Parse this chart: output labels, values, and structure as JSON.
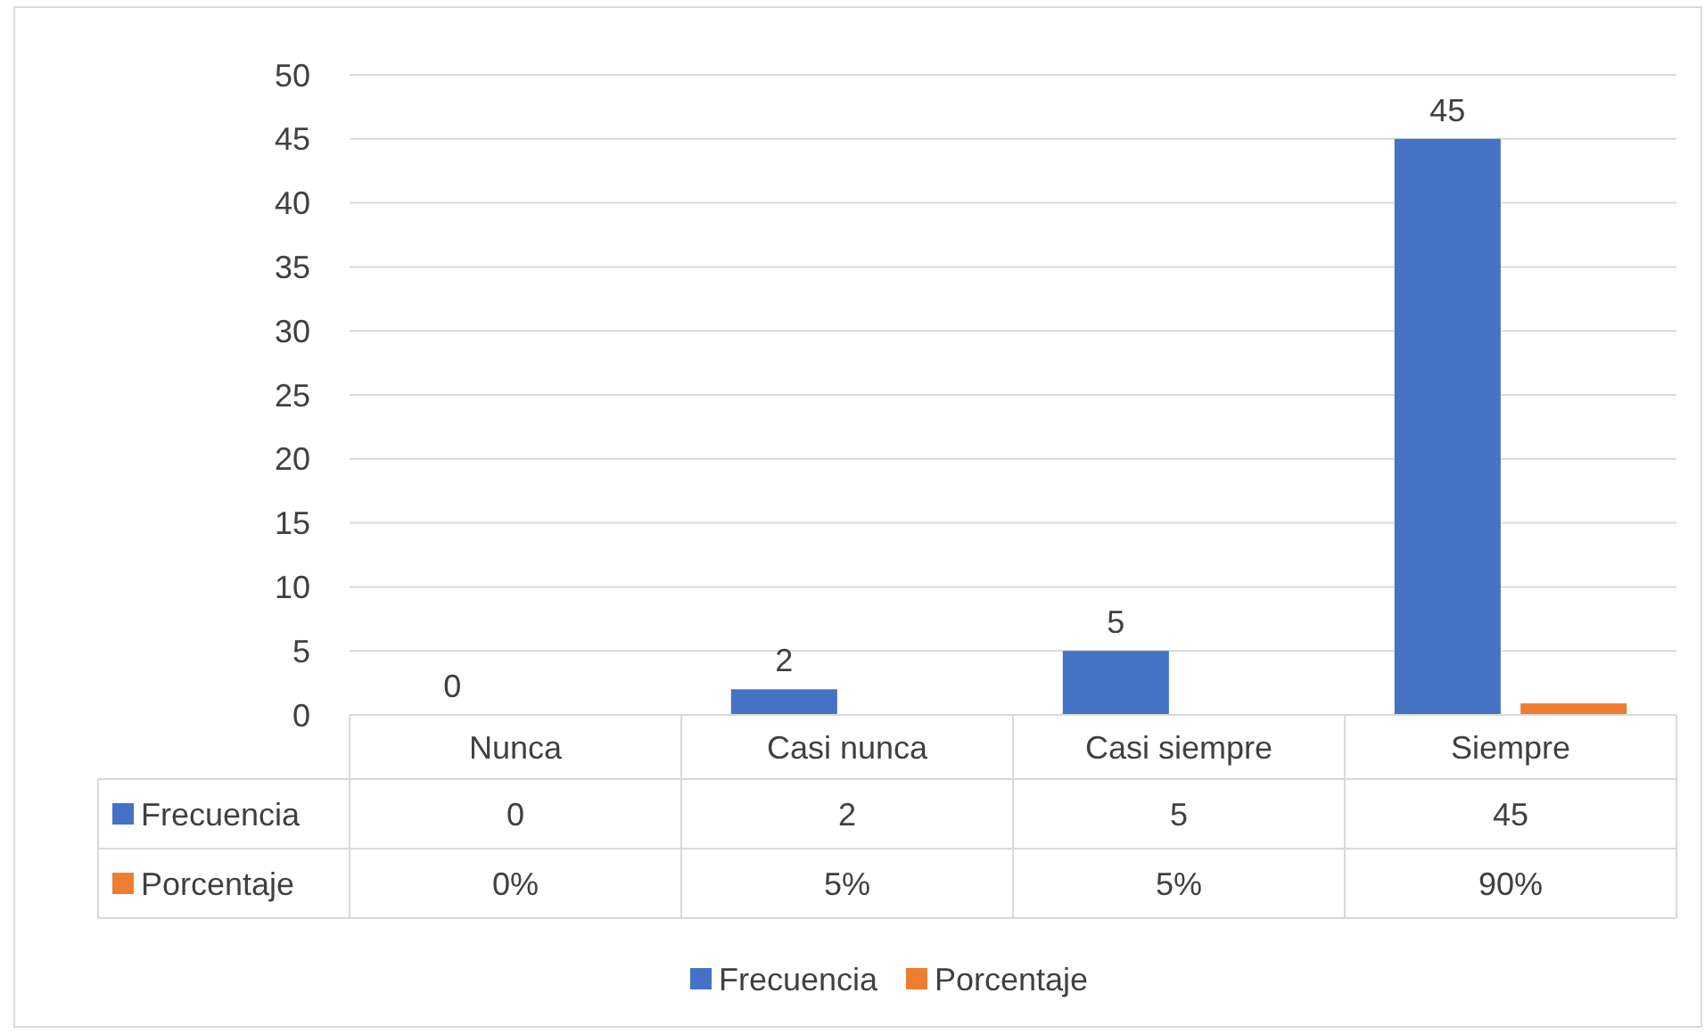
{
  "chart_data": {
    "type": "bar",
    "categories": [
      "Nunca",
      "Casi nunca",
      "Casi siempre",
      "Siempre"
    ],
    "series": [
      {
        "name": "Frecuencia",
        "color": "#4472c4",
        "values": [
          0,
          2,
          5,
          45
        ],
        "value_labels": [
          "0",
          "2",
          "5",
          "45"
        ]
      },
      {
        "name": "Porcentaje",
        "color": "#ed7d31",
        "values": [
          0,
          0.05,
          0.05,
          0.9
        ],
        "value_labels": [
          "0%",
          "5%",
          "5%",
          "90%"
        ]
      }
    ],
    "ylim": [
      0,
      50
    ],
    "yticks": [
      0,
      5,
      10,
      15,
      20,
      25,
      30,
      35,
      40,
      45,
      50
    ],
    "grid": "y",
    "legend": "bottom"
  }
}
